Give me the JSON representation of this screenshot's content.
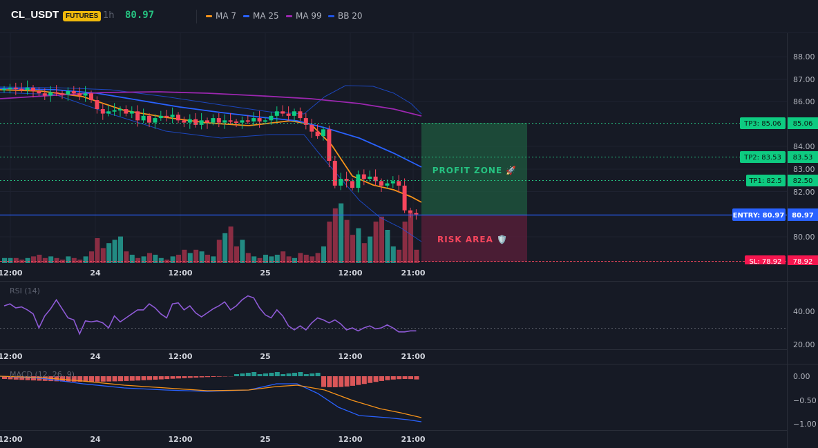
{
  "header": {
    "symbol": "CL_USDT",
    "badge": "FUTURES",
    "timeframe": "1h",
    "price": "80.97",
    "legend": [
      {
        "label": "MA 7",
        "color": "#f7931a"
      },
      {
        "label": "MA 25",
        "color": "#2962ff"
      },
      {
        "label": "MA 99",
        "color": "#9c27b0"
      },
      {
        "label": "BB 20",
        "color": "#1e53e5"
      }
    ]
  },
  "price_axis": {
    "ticks": [
      "88.00",
      "87.00",
      "86.00",
      "84.00",
      "83.00",
      "82.00",
      "80.00"
    ]
  },
  "time_axis": [
    "12:00",
    "24",
    "12:00",
    "25",
    "12:00",
    "21:00"
  ],
  "levels": {
    "tp3": {
      "label": "TP3: 85.06",
      "price": "85.06"
    },
    "tp2": {
      "label": "TP2: 83.53",
      "price": "83.53"
    },
    "tp1": {
      "label": "TP1: 82.5",
      "price": "82.50"
    },
    "entry": {
      "label": "ENTRY: 80.97",
      "price": "80.97"
    },
    "sl": {
      "label": "SL: 78.92",
      "price": "78.92"
    }
  },
  "zones": {
    "profit": "PROFIT ZONE 🚀",
    "risk": "RISK AREA 🛡️"
  },
  "rsi": {
    "title": "RSI (14)",
    "ticks": [
      "40.00",
      "20.00"
    ]
  },
  "macd": {
    "title": "MACD (12, 26, 9)",
    "ticks": [
      "0.00",
      "−0.50",
      "−1.00"
    ]
  },
  "colors": {
    "up": "#26a69a",
    "up_candle": "#0ecb81",
    "down": "#f6465d",
    "grid": "#1e2230",
    "rsi": "#8e5ad6",
    "macd": "#2962ff",
    "signal": "#f7931a"
  }
}
